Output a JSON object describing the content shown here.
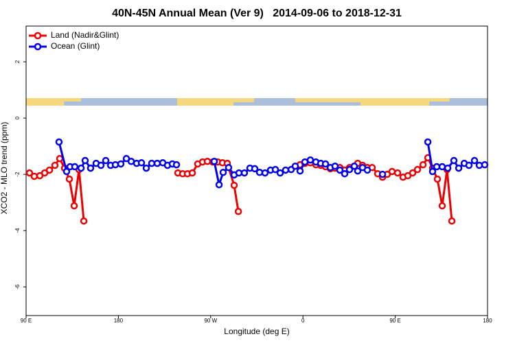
{
  "chart_data": {
    "type": "line",
    "title": "40N-45N Annual Mean (Ver 9)   2014-09-06 to 2018-12-31",
    "x_label": "Longitude (deg E)",
    "y_label": "XCO2 - MLO trend (ppm)",
    "xlim": [
      90,
      540
    ],
    "xticks": [
      {
        "value": 90,
        "label": "90 E"
      },
      {
        "value": 180,
        "label": "180"
      },
      {
        "value": 270,
        "label": "90 W"
      },
      {
        "value": 360,
        "label": "0"
      },
      {
        "value": 450,
        "label": "90 E"
      },
      {
        "value": 540,
        "label": "180"
      }
    ],
    "ylim": [
      -7.02,
      3.27
    ],
    "yticks": [
      -6,
      -4,
      -2,
      0,
      2
    ],
    "legend": "top-left",
    "series": [
      {
        "name": "Land (Nadir&Glint)",
        "color": "#ee0000",
        "x": [
          93.3,
          98.0,
          103.4,
          108.1,
          112.8,
          118.1,
          122.8,
          127.5,
          132.2,
          136.9,
          141.6,
          146.3,
          null,
          238.0,
          242.7,
          247.4,
          252.1,
          257.4,
          262.1,
          266.8,
          272.1,
          276.8,
          281.5,
          286.2,
          292.9,
          297.0,
          null,
          357.2,
          361.9,
          367.2,
          372.6,
          377.3,
          382.0,
          386.7,
          391.3,
          396.0,
          400.7,
          405.4,
          410.1,
          413.4,
          418.1,
          422.8,
          427.5,
          432.9,
          437.6,
          442.2,
          446.9,
          452.3,
          457.6,
          462.3,
          467.0,
          471.7,
          477.1,
          481.8,
          486.4,
          491.1,
          495.8,
          500.5,
          505.2
        ],
        "values": [
          -1.95,
          -2.07,
          -2.05,
          -1.95,
          -1.85,
          -1.68,
          -1.44,
          -1.78,
          -2.17,
          -3.12,
          -1.83,
          -3.66,
          null,
          -1.95,
          -1.98,
          -1.98,
          -1.95,
          -1.63,
          -1.56,
          -1.54,
          -1.56,
          -1.56,
          -1.59,
          -1.61,
          -2.39,
          -3.32,
          null,
          -1.66,
          -1.61,
          -1.59,
          -1.66,
          -1.68,
          -1.73,
          -1.8,
          -1.78,
          -1.76,
          -1.85,
          -1.76,
          -1.71,
          -1.61,
          -1.68,
          -1.76,
          -1.76,
          -1.98,
          -2.1,
          -2.0,
          -1.9,
          -1.95,
          -2.1,
          -2.05,
          -1.95,
          -1.83,
          -1.66,
          -1.41,
          -1.78,
          -2.17,
          -3.12,
          -1.83,
          -3.66
        ]
      },
      {
        "name": "Ocean (Glint)",
        "color": "#0000ee",
        "x": [
          122.1,
          129.5,
          132.9,
          137.5,
          143.6,
          147.6,
          152.9,
          158.3,
          163.0,
          167.7,
          172.4,
          177.1,
          182.4,
          187.8,
          192.5,
          197.8,
          202.5,
          207.2,
          212.5,
          217.9,
          223.3,
          227.9,
          232.6,
          236.7,
          null,
          273.5,
          278.2,
          282.2,
          287.5,
          292.9,
          297.6,
          302.9,
          308.3,
          313.0,
          317.7,
          323.0,
          328.4,
          333.1,
          337.8,
          343.1,
          348.5,
          352.5,
          357.2,
          361.9,
          367.2,
          372.6,
          377.3,
          382.0,
          386.7,
          391.3,
          396.0,
          400.7,
          405.4,
          410.1,
          413.4,
          418.1,
          422.8,
          null,
          437.6,
          null,
          481.8,
          486.4,
          490.5,
          495.8,
          501.2,
          507.2,
          511.9,
          517.3,
          521.9,
          527.3,
          532.0,
          537.3
        ],
        "values": [
          -0.85,
          -1.9,
          -1.73,
          -1.73,
          -1.78,
          -1.51,
          -1.78,
          -1.61,
          -1.68,
          -1.51,
          -1.68,
          -1.66,
          -1.63,
          -1.44,
          -1.54,
          -1.61,
          -1.59,
          -1.78,
          -1.61,
          -1.61,
          -1.59,
          -1.68,
          -1.63,
          -1.66,
          null,
          -1.54,
          -2.37,
          -1.93,
          -1.76,
          -2.02,
          -1.95,
          -1.95,
          -1.78,
          -1.8,
          -1.93,
          -1.95,
          -1.85,
          -1.83,
          -1.95,
          -1.85,
          -1.83,
          -1.71,
          -1.88,
          -1.56,
          -1.49,
          -1.56,
          -1.61,
          -1.63,
          -1.76,
          -1.71,
          -1.85,
          -1.98,
          -1.83,
          -1.71,
          -1.88,
          -1.76,
          -1.85,
          null,
          -2.0,
          null,
          -0.85,
          -1.9,
          -1.73,
          -1.73,
          -1.78,
          -1.51,
          -1.78,
          -1.61,
          -1.68,
          -1.51,
          -1.68,
          -1.66
        ]
      }
    ]
  }
}
